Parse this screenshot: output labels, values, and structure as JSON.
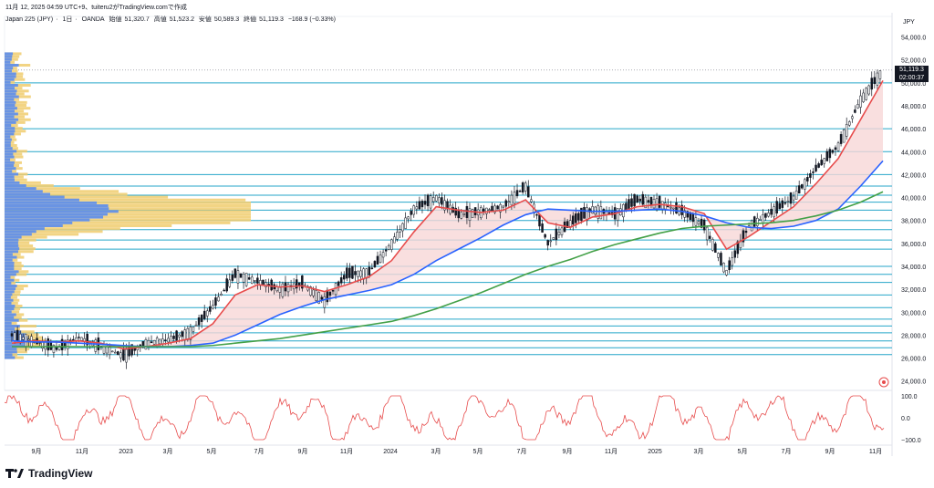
{
  "header": {
    "timestamp_line": "11月 12, 2025 04:59 UTC+9、tuiteru2がTradingView.comで作成"
  },
  "symbol": {
    "name": "Japan 225 (JPY)",
    "interval": "1日",
    "source": "OANDA",
    "open_label": "始値",
    "open_value": "51,320.7",
    "high_label": "高値",
    "high_value": "51,523.2",
    "low_label": "安値",
    "low_value": "50,589.3",
    "close_label": "終値",
    "close_value": "51,119.3",
    "change": "−168.9 (−0.33%)"
  },
  "price_axis": {
    "unit": "JPY",
    "labels": [
      "54,000.0",
      "52,000.0",
      "50,000.0",
      "48,000.0",
      "46,000.0",
      "44,000.0",
      "42,000.0",
      "40,000.0",
      "38,000.0",
      "36,000.0",
      "34,000.0",
      "32,000.0",
      "30,000.0",
      "28,000.0",
      "26,000.0",
      "24,000.0"
    ],
    "current_price": "51,119.3",
    "countdown": "02:00:37"
  },
  "oscillator_axis": {
    "labels": [
      "100.0",
      "0.0",
      "−100.0"
    ]
  },
  "time_axis": {
    "labels": [
      "9月",
      "11月",
      "2023",
      "3月",
      "5月",
      "7月",
      "9月",
      "11月",
      "2024",
      "3月",
      "5月",
      "7月",
      "9月",
      "11月",
      "2025",
      "3月",
      "5月",
      "7月",
      "9月",
      "11月"
    ]
  },
  "footer": {
    "brand": "TradingView"
  },
  "colors": {
    "candle": "#131722",
    "sma_short": "#e74c4c",
    "sma_mid": "#2962ff",
    "sma_long": "#43a047",
    "hlines": "#26a6c9",
    "cloud": "#f8d7d7",
    "vp_up": "#5b8ded",
    "vp_down": "#f0cd6e",
    "oscillator": "#e74c4c"
  },
  "chart_data": {
    "type": "line",
    "y_range": [
      23500,
      55000
    ],
    "x": [
      "2022-08",
      "2022-09",
      "2022-10",
      "2022-11",
      "2022-12",
      "2023-01",
      "2023-02",
      "2023-03",
      "2023-04",
      "2023-05",
      "2023-06",
      "2023-07",
      "2023-08",
      "2023-09",
      "2023-10",
      "2023-11",
      "2023-12",
      "2024-01",
      "2024-02",
      "2024-03",
      "2024-04",
      "2024-05",
      "2024-06",
      "2024-07",
      "2024-08",
      "2024-09",
      "2024-10",
      "2024-11",
      "2024-12",
      "2025-01",
      "2025-02",
      "2025-03",
      "2025-04",
      "2025-05",
      "2025-06",
      "2025-07",
      "2025-08",
      "2025-09",
      "2025-10",
      "2025-11"
    ],
    "series": [
      {
        "values": [
          28000,
          27500,
          26800,
          27800,
          27000,
          26200,
          27300,
          27600,
          28300,
          30500,
          33300,
          32700,
          32000,
          32500,
          31000,
          33300,
          33500,
          36000,
          39000,
          40000,
          38500,
          38800,
          39200,
          41000,
          36000,
          37800,
          39000,
          38500,
          39800,
          39500,
          38800,
          37500,
          33500,
          37500,
          38700,
          40000,
          42500,
          44500,
          48500,
          51119
        ]
      },
      {
        "values": [
          27300,
          27500,
          27400,
          27500,
          27300,
          26800,
          27000,
          27300,
          27700,
          29000,
          31500,
          32400,
          32200,
          32300,
          31800,
          32400,
          33100,
          34500,
          37000,
          39200,
          38900,
          38700,
          38900,
          39800,
          37800,
          37400,
          38300,
          38600,
          39200,
          39400,
          39200,
          38600,
          35500,
          36600,
          37900,
          39200,
          41200,
          43400,
          46800,
          50200
        ]
      },
      {
        "values": [
          27500,
          27400,
          27400,
          27300,
          27200,
          27100,
          27000,
          27000,
          27100,
          27300,
          28000,
          28900,
          29800,
          30500,
          31100,
          31500,
          31900,
          32400,
          33300,
          34500,
          35500,
          36500,
          37600,
          38500,
          39000,
          38900,
          38800,
          38800,
          38900,
          39000,
          38800,
          38400,
          37800,
          37400,
          37300,
          37500,
          38000,
          39000,
          41000,
          43200
        ]
      },
      {
        "values": [
          27000,
          27000,
          27000,
          27000,
          27000,
          27000,
          27000,
          27000,
          27000,
          27100,
          27300,
          27500,
          27700,
          28000,
          28300,
          28600,
          28900,
          29200,
          29700,
          30300,
          31000,
          31700,
          32500,
          33300,
          34000,
          34600,
          35300,
          35900,
          36400,
          36900,
          37300,
          37500,
          37600,
          37700,
          37800,
          38000,
          38400,
          38900,
          39600,
          40500
        ]
      }
    ],
    "oscillator_range": [
      -100,
      100
    ]
  }
}
